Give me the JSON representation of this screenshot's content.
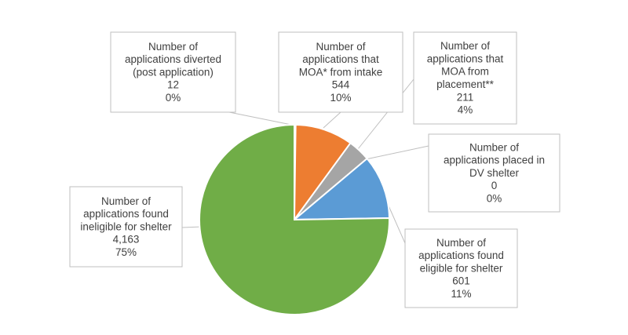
{
  "chart_data": {
    "type": "pie",
    "title": "",
    "slices": [
      {
        "key": "diverted",
        "lines": [
          "Number of",
          "applications diverted",
          "(post application)"
        ],
        "value": 12,
        "value_label": "12",
        "percent_label": "0%",
        "color": "#FFC000"
      },
      {
        "key": "moa-intake",
        "lines": [
          "Number of",
          "applications that",
          "MOA* from intake"
        ],
        "value": 544,
        "value_label": "544",
        "percent_label": "10%",
        "color": "#ED7D31"
      },
      {
        "key": "moa-placement",
        "lines": [
          "Number of",
          "applications that",
          "MOA from",
          "placement**"
        ],
        "value": 211,
        "value_label": "211",
        "percent_label": "4%",
        "color": "#A5A5A5"
      },
      {
        "key": "dv-shelter",
        "lines": [
          "Number of",
          "applications placed in",
          "DV shelter"
        ],
        "value": 0,
        "value_label": "0",
        "percent_label": "0%",
        "color": "#4472C4"
      },
      {
        "key": "eligible",
        "lines": [
          "Number of",
          "applications found",
          "eligible for shelter"
        ],
        "value": 601,
        "value_label": "601",
        "percent_label": "11%",
        "color": "#5B9BD5"
      },
      {
        "key": "ineligible",
        "lines": [
          "Number of",
          "applications found",
          "ineligible for shelter"
        ],
        "value": 4163,
        "value_label": "4,163",
        "percent_label": "75%",
        "color": "#70AD47"
      }
    ]
  }
}
